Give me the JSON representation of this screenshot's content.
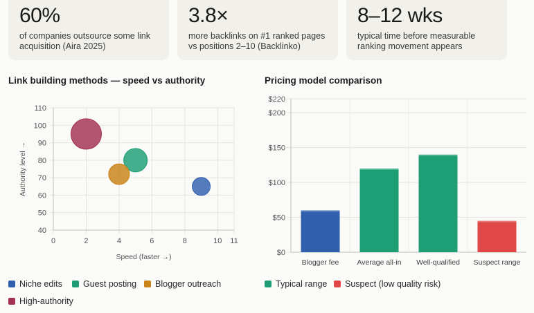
{
  "stats": [
    {
      "value": "60%",
      "desc1": "of companies outsource some link",
      "desc2": "acquisition (Aira 2025)"
    },
    {
      "value": "3.8×",
      "desc1": "more backlinks on #1 ranked pages",
      "desc2": "vs positions 2–10 (Backlinko)"
    },
    {
      "value": "8–12 wks",
      "desc1": "typical time before measurable",
      "desc2": "ranking movement appears"
    }
  ],
  "chart_data": [
    {
      "type": "scatter",
      "title": "Link building methods — speed vs authority",
      "xlabel": "Speed (faster →)",
      "ylabel": "Authority level →",
      "xlim": [
        0,
        11
      ],
      "ylim": [
        40,
        110
      ],
      "xticks": [
        "0",
        "2",
        "4",
        "6",
        "8",
        "10",
        "11"
      ],
      "yticks": [
        "40",
        "50",
        "60",
        "70",
        "80",
        "90",
        "100",
        "110"
      ],
      "grid": true,
      "legend_position": "bottom",
      "series": [
        {
          "name": "Niche edits",
          "color": "#2f5fad",
          "points": [
            {
              "x": 9,
              "y": 65,
              "r": 13
            }
          ]
        },
        {
          "name": "Guest posting",
          "color": "#1d9e74",
          "points": [
            {
              "x": 5,
              "y": 80,
              "r": 17
            }
          ]
        },
        {
          "name": "Blogger outreach",
          "color": "#c98316",
          "points": [
            {
              "x": 4,
              "y": 72,
              "r": 15
            }
          ]
        },
        {
          "name": "High-authority",
          "color": "#a33154",
          "points": [
            {
              "x": 2,
              "y": 95,
              "r": 22
            }
          ]
        }
      ]
    },
    {
      "type": "bar",
      "title": "Pricing model comparison",
      "categories": [
        "Blogger fee",
        "Average all-in",
        "Well-qualified",
        "Suspect range"
      ],
      "values": [
        60,
        120,
        140,
        45
      ],
      "bar_colors": [
        "#2f5fad",
        "#1d9e74",
        "#1d9e74",
        "#e04848"
      ],
      "ylim": [
        0,
        220
      ],
      "yticks": [
        "$0",
        "$50",
        "$100",
        "$150",
        "$200",
        "$220"
      ],
      "ytick_values": [
        0,
        50,
        100,
        150,
        200,
        220
      ],
      "grid": true,
      "legend_position": "bottom",
      "legend": [
        {
          "name": "Typical range",
          "color": "#1d9e74"
        },
        {
          "name": "Suspect (low quality risk)",
          "color": "#e04848"
        }
      ]
    }
  ]
}
